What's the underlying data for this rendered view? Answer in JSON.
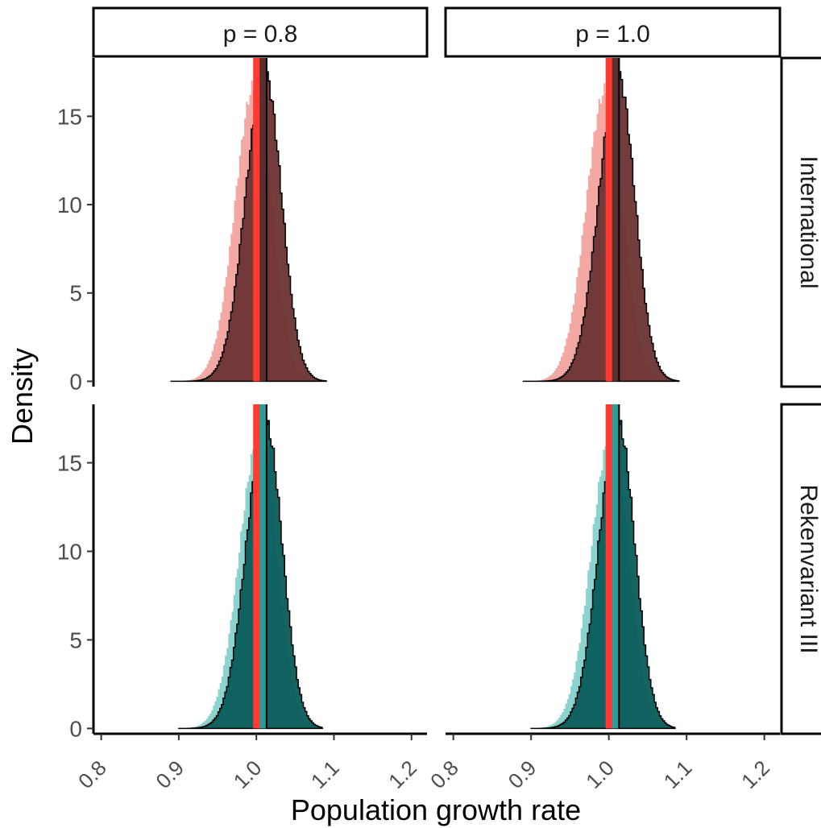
{
  "chart_data": {
    "type": "histogram",
    "xlabel": "Population growth rate",
    "ylabel": "Density",
    "xlim": [
      0.79,
      1.22
    ],
    "ylim": [
      -0.3,
      18.3
    ],
    "x_ticks": [
      0.8,
      0.9,
      1.0,
      1.1,
      1.2
    ],
    "x_tick_labels": [
      "0.8",
      "0.9",
      "1.0",
      "1.1",
      "1.2"
    ],
    "y_ticks": [
      0,
      5,
      10,
      15
    ],
    "y_tick_labels": [
      "0",
      "5",
      "10",
      "15"
    ],
    "column_facets": [
      "p = 0.8",
      "p = 1.0"
    ],
    "row_facets": [
      "International",
      "Rekenvariant III"
    ],
    "reference_lines": [
      {
        "x": 1.0,
        "color": "#ff3b30"
      },
      {
        "x": 1.009,
        "color": "#000000"
      }
    ],
    "panels": [
      {
        "column": "p = 0.8",
        "row": "International",
        "light": {
          "color": "#f4a8a4",
          "mean": 0.997,
          "sd": 0.0235,
          "peak": 16.8,
          "xmin": 0.87,
          "xmax": 1.075
        },
        "dark": {
          "color": "#6b3333",
          "outline": "#000000",
          "mean": 1.01,
          "sd": 0.023,
          "peak": 17.4,
          "xmin": 0.89,
          "xmax": 1.088
        }
      },
      {
        "column": "p = 1.0",
        "row": "International",
        "light": {
          "color": "#f4a8a4",
          "mean": 0.995,
          "sd": 0.0235,
          "peak": 16.5,
          "xmin": 0.87,
          "xmax": 1.075
        },
        "dark": {
          "color": "#6b3333",
          "outline": "#000000",
          "mean": 1.011,
          "sd": 0.023,
          "peak": 17.3,
          "xmin": 0.89,
          "xmax": 1.088
        }
      },
      {
        "column": "p = 0.8",
        "row": "Rekenvariant III",
        "light": {
          "color": "#8ad3cf",
          "mean": 1.003,
          "sd": 0.024,
          "peak": 16.5,
          "xmin": 0.9,
          "xmax": 1.075
        },
        "dark": {
          "color": "#0a5c5a",
          "outline": "#000000",
          "mean": 1.011,
          "sd": 0.023,
          "peak": 17.2,
          "xmin": 0.9,
          "xmax": 1.083
        }
      },
      {
        "column": "p = 1.0",
        "row": "Rekenvariant III",
        "light": {
          "color": "#8ad3cf",
          "mean": 1.002,
          "sd": 0.024,
          "peak": 16.5,
          "xmin": 0.9,
          "xmax": 1.075
        },
        "dark": {
          "color": "#0a5c5a",
          "outline": "#000000",
          "mean": 1.011,
          "sd": 0.023,
          "peak": 17.2,
          "xmin": 0.9,
          "xmax": 1.083
        }
      }
    ],
    "grid": false,
    "legend": "none"
  }
}
